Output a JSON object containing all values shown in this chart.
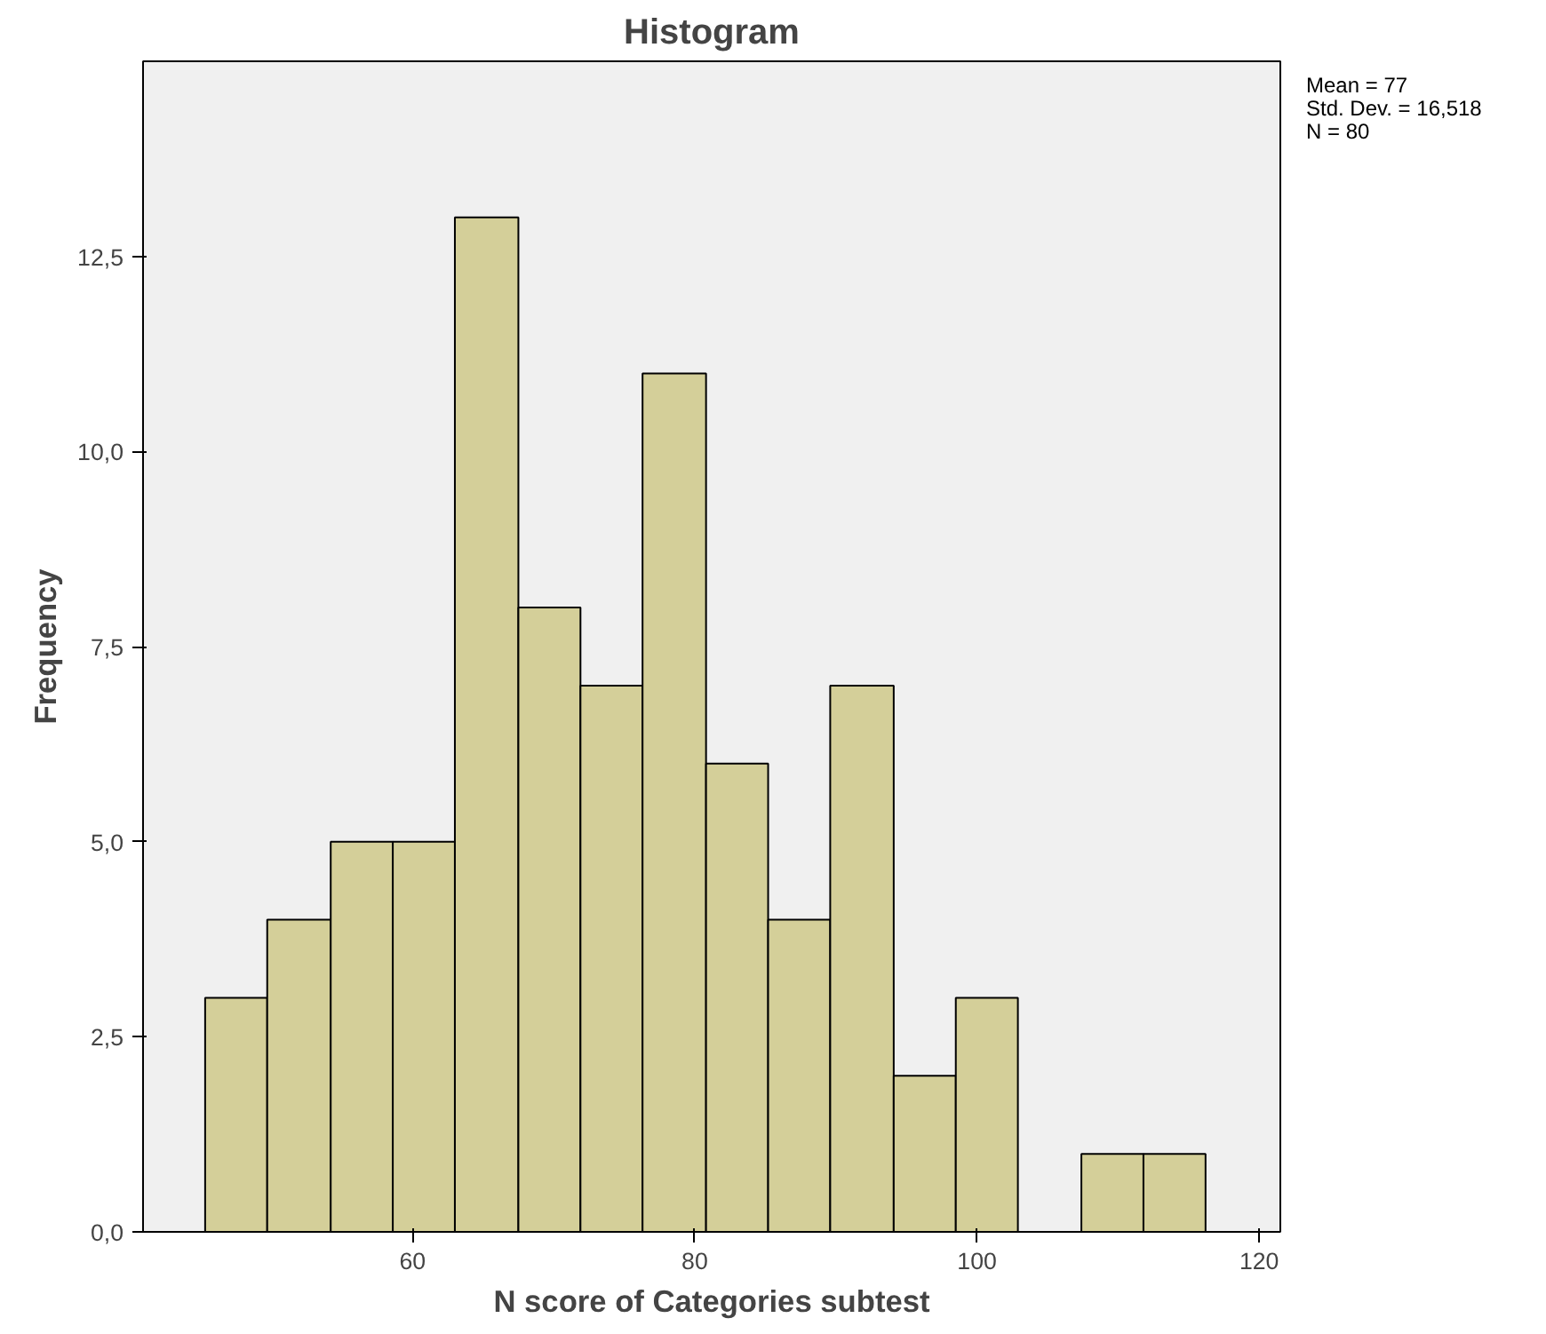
{
  "chart_data": {
    "type": "histogram",
    "title": "Histogram",
    "xlabel": "N score of Categories subtest",
    "ylabel": "Frequency",
    "bins": [
      45.3,
      49.7,
      54.2,
      58.6,
      63.0,
      67.5,
      71.9,
      76.3,
      80.8,
      85.2,
      89.6,
      94.1,
      98.5,
      102.9,
      107.4,
      111.8,
      116.2
    ],
    "values": [
      3,
      4,
      5,
      5,
      13,
      8,
      7,
      11,
      6,
      4,
      7,
      2,
      3,
      0,
      1,
      1
    ],
    "color": "#d4cf99",
    "xlim": [
      40.9,
      121.5
    ],
    "xticks": [
      60,
      80,
      100,
      120
    ],
    "ylim": [
      0,
      15
    ],
    "yticks": [
      {
        "value": 0,
        "label": "0,0"
      },
      {
        "value": 2.5,
        "label": "2,5"
      },
      {
        "value": 5,
        "label": "5,0"
      },
      {
        "value": 7.5,
        "label": "7,5"
      },
      {
        "value": 10,
        "label": "10,0"
      },
      {
        "value": 12.5,
        "label": "12,5"
      }
    ],
    "grid": false,
    "annotations": [
      "Mean = 77",
      "Std. Dev. = 16,518",
      "N = 80"
    ]
  }
}
